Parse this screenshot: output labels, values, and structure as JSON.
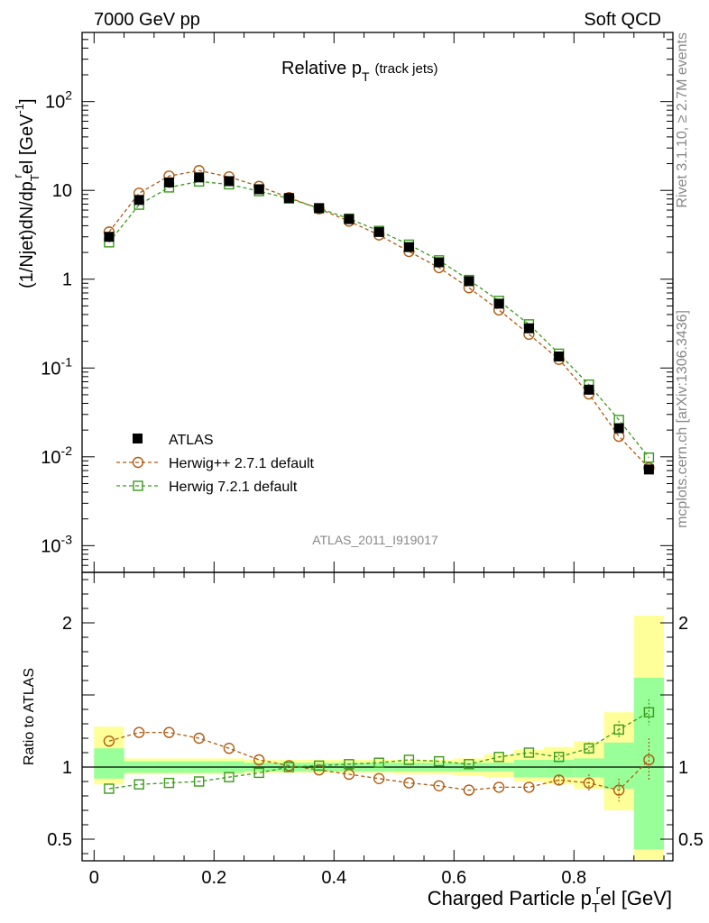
{
  "header": {
    "left": "7000 GeV pp",
    "right": "Soft QCD"
  },
  "side_labels": {
    "rivet": "Rivet 3.1.10, ≥ 2.7M events",
    "mcplots": "mcplots.cern.ch [arXiv:1306.3436]"
  },
  "chart_data": [
    {
      "type": "scatter",
      "title": "Relative p_T (track jets)",
      "title_main": "Relative p",
      "title_sub": "T",
      "title_paren": "(track jets)",
      "ylabel": "(1/Njet)dN/dp_T^rel [GeV^-1]",
      "ylabel_parts": [
        "(1/Njet)dN/dp",
        "T",
        "r",
        "el [GeV",
        "-1",
        "]"
      ],
      "yscale": "log",
      "ylim": [
        0.0005,
        600
      ],
      "xlim": [
        -0.02,
        0.965
      ],
      "yticks": [
        {
          "v": 0.001,
          "base": "10",
          "exp": "-3"
        },
        {
          "v": 0.01,
          "base": "10",
          "exp": "-2"
        },
        {
          "v": 0.1,
          "base": "10",
          "exp": "-1"
        },
        {
          "v": 1,
          "base": "1",
          "exp": ""
        },
        {
          "v": 10,
          "base": "10",
          "exp": ""
        },
        {
          "v": 100,
          "base": "10",
          "exp": "2"
        }
      ],
      "watermark": "ATLAS_2011_I919017",
      "legend": {
        "placement": "bottom-left",
        "entries": [
          "ATLAS",
          "Herwig++ 2.7.1 default",
          "Herwig 7.2.1 default"
        ]
      },
      "x": [
        0.025,
        0.075,
        0.125,
        0.175,
        0.225,
        0.275,
        0.325,
        0.375,
        0.425,
        0.475,
        0.525,
        0.575,
        0.625,
        0.675,
        0.725,
        0.775,
        0.825,
        0.875,
        0.925
      ],
      "series": [
        {
          "name": "ATLAS",
          "color": "#000000",
          "marker": "filled-square",
          "values": [
            3.0,
            7.8,
            12.3,
            14.0,
            12.7,
            10.3,
            8.2,
            6.3,
            4.75,
            3.4,
            2.3,
            1.55,
            0.95,
            0.53,
            0.28,
            0.135,
            0.057,
            0.021,
            0.0072
          ]
        },
        {
          "name": "Herwig++ 2.7.1 default",
          "color": "#b05a10",
          "marker": "open-circle",
          "values": [
            3.4,
            9.3,
            14.5,
            16.7,
            14.2,
            11.1,
            8.3,
            6.2,
            4.5,
            3.15,
            2.05,
            1.35,
            0.8,
            0.45,
            0.24,
            0.125,
            0.051,
            0.017,
            0.0075
          ]
        },
        {
          "name": "Herwig 7.2.1 default",
          "color": "#3a9a1a",
          "marker": "open-square",
          "values": [
            2.6,
            6.9,
            10.8,
            12.6,
            11.7,
            9.8,
            8.1,
            6.3,
            4.8,
            3.5,
            2.45,
            1.63,
            0.98,
            0.57,
            0.31,
            0.145,
            0.065,
            0.026,
            0.0098
          ]
        }
      ]
    },
    {
      "type": "scatter",
      "ylabel": "Ratio to ATLAS",
      "xlabel": "Charged Particle p_T^rel [GeV]",
      "xlabel_parts": [
        "Charged Particle p",
        "T",
        "r",
        "el [GeV]"
      ],
      "ylim": [
        0.35,
        2.35
      ],
      "xlim": [
        -0.02,
        0.965
      ],
      "yticks": [
        "0.5",
        "1",
        "2"
      ],
      "xticks": [
        "0",
        "0.2",
        "0.4",
        "0.6",
        "0.8"
      ],
      "x": [
        0.025,
        0.075,
        0.125,
        0.175,
        0.225,
        0.275,
        0.325,
        0.375,
        0.425,
        0.475,
        0.525,
        0.575,
        0.625,
        0.675,
        0.725,
        0.775,
        0.825,
        0.875,
        0.925
      ],
      "bin_edges": [
        0.0,
        0.05,
        0.1,
        0.15,
        0.2,
        0.25,
        0.3,
        0.35,
        0.4,
        0.45,
        0.5,
        0.55,
        0.6,
        0.65,
        0.7,
        0.75,
        0.8,
        0.85,
        0.9,
        0.95
      ],
      "band_green": [
        [
          0.92,
          1.13
        ],
        [
          0.96,
          1.04
        ],
        [
          0.96,
          1.04
        ],
        [
          0.96,
          1.04
        ],
        [
          0.96,
          1.04
        ],
        [
          0.97,
          1.03
        ],
        [
          0.97,
          1.03
        ],
        [
          0.97,
          1.03
        ],
        [
          0.97,
          1.03
        ],
        [
          0.97,
          1.03
        ],
        [
          0.97,
          1.03
        ],
        [
          0.97,
          1.03
        ],
        [
          0.97,
          1.03
        ],
        [
          0.97,
          1.03
        ],
        [
          0.93,
          1.05
        ],
        [
          0.93,
          1.05
        ],
        [
          0.93,
          1.06
        ],
        [
          0.85,
          1.17
        ],
        [
          0.43,
          1.62
        ]
      ],
      "band_yellow": [
        [
          0.88,
          1.28
        ],
        [
          0.95,
          1.06
        ],
        [
          0.95,
          1.06
        ],
        [
          0.95,
          1.06
        ],
        [
          0.95,
          1.06
        ],
        [
          0.96,
          1.05
        ],
        [
          0.96,
          1.05
        ],
        [
          0.96,
          1.05
        ],
        [
          0.96,
          1.05
        ],
        [
          0.96,
          1.05
        ],
        [
          0.95,
          1.05
        ],
        [
          0.95,
          1.05
        ],
        [
          0.94,
          1.06
        ],
        [
          0.93,
          1.09
        ],
        [
          0.9,
          1.12
        ],
        [
          0.88,
          1.14
        ],
        [
          0.85,
          1.18
        ],
        [
          0.7,
          1.38
        ],
        [
          0.36,
          2.05
        ]
      ],
      "series": [
        {
          "name": "Herwig++ 2.7.1 default",
          "color": "#b05a10",
          "marker": "open-circle",
          "values": [
            1.18,
            1.24,
            1.24,
            1.2,
            1.13,
            1.05,
            1.01,
            0.98,
            0.95,
            0.92,
            0.89,
            0.87,
            0.84,
            0.86,
            0.86,
            0.91,
            0.89,
            0.84,
            1.05
          ],
          "errors": [
            0,
            0,
            0,
            0,
            0,
            0,
            0,
            0,
            0,
            0,
            0,
            0,
            0,
            0,
            0,
            0.03,
            0.06,
            0.08,
            0.15
          ]
        },
        {
          "name": "Herwig 7.2.1 default",
          "color": "#3a9a1a",
          "marker": "open-square",
          "values": [
            0.85,
            0.88,
            0.89,
            0.9,
            0.93,
            0.96,
            1.0,
            1.01,
            1.02,
            1.03,
            1.05,
            1.04,
            1.02,
            1.07,
            1.1,
            1.07,
            1.13,
            1.26,
            1.38
          ],
          "errors": [
            0,
            0,
            0,
            0,
            0,
            0,
            0,
            0,
            0,
            0,
            0,
            0,
            0,
            0,
            0,
            0.02,
            0.04,
            0.06,
            0.09
          ]
        }
      ]
    }
  ]
}
